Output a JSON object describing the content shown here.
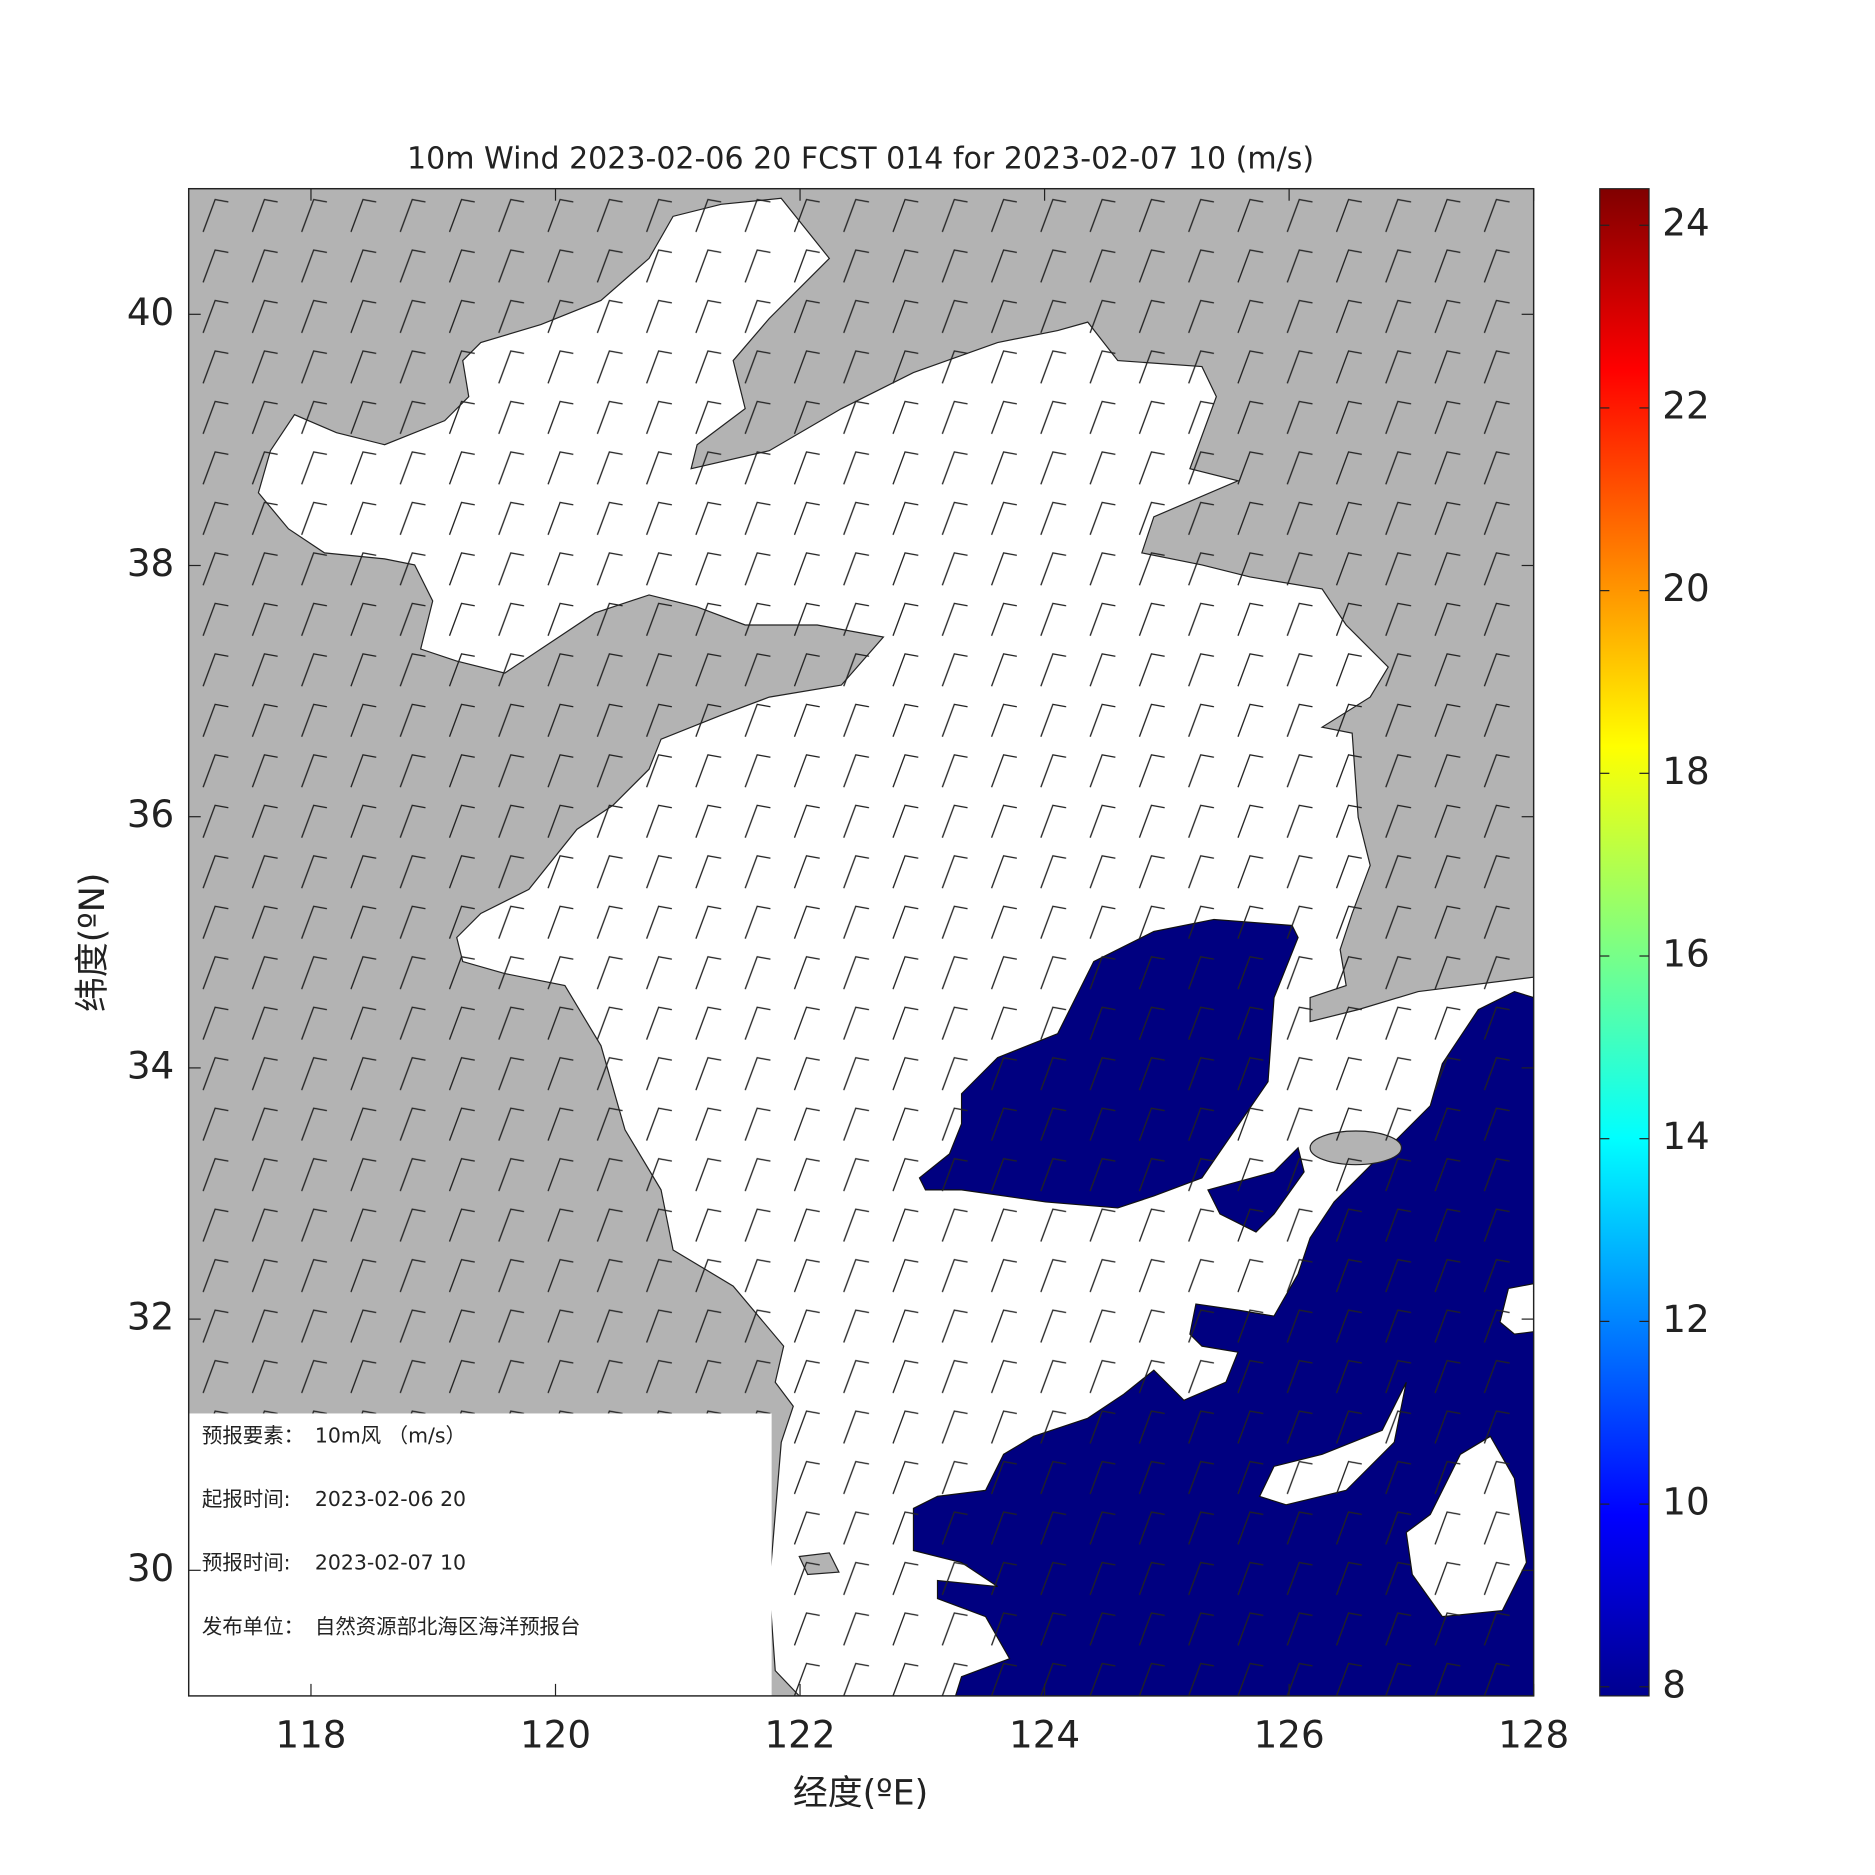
{
  "chart_data": {
    "type": "wind_map",
    "title": "10m Wind 2023-02-06 20 FCST 014 for 2023-02-07 10 (m/s)",
    "x_label": "经度(ºE)",
    "y_label": "纬度(ºN)",
    "xlim": [
      117,
      128
    ],
    "ylim": [
      29,
      41
    ],
    "xticks": [
      118,
      120,
      122,
      124,
      126,
      128
    ],
    "yticks": [
      30,
      32,
      34,
      36,
      38,
      40
    ],
    "colorbar": {
      "lim": [
        7.9,
        24.4
      ],
      "ticks": [
        8,
        10,
        12,
        14,
        16,
        18,
        20,
        22,
        24
      ]
    },
    "info": [
      {
        "label": "预报要素：",
        "text": "10m风 （m/s）"
      },
      {
        "label": "起报时间:",
        "text": "2023-02-06 20"
      },
      {
        "label": "预报时间:",
        "text": "2023-02-07 10"
      },
      {
        "label": "发布单位：",
        "text": "自然资源部北海区海洋预报台"
      }
    ]
  }
}
